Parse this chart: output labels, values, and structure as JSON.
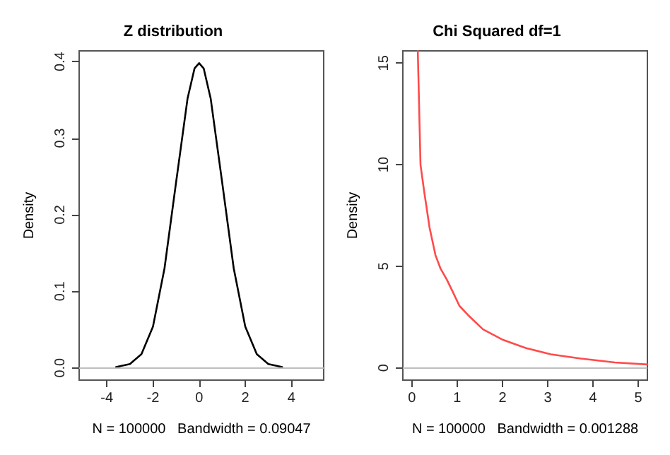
{
  "chart_data": [
    {
      "type": "line",
      "title": "Z distribution",
      "xlabel": "N = 100000   Bandwidth = 0.09047",
      "ylabel": "Density",
      "series": [
        {
          "color": "#000000",
          "x": [
            -3.6,
            -3,
            -2.5,
            -2,
            -1.5,
            -1,
            -0.5,
            -0.2,
            0,
            0.2,
            0.5,
            1,
            1.5,
            2,
            2.5,
            3,
            3.6
          ],
          "values": [
            0.001,
            0.005,
            0.018,
            0.054,
            0.13,
            0.242,
            0.352,
            0.391,
            0.398,
            0.391,
            0.352,
            0.242,
            0.13,
            0.054,
            0.018,
            0.005,
            0.001
          ]
        }
      ],
      "xlim": [
        -5.2,
        5.4
      ],
      "xticks": [
        -4,
        -2,
        0,
        2,
        4
      ],
      "ylim": [
        -0.016,
        0.414
      ],
      "yticks": [
        {
          "value": 0,
          "label": "0.0"
        },
        0.1,
        0.2,
        0.3,
        0.4
      ],
      "ref_lines": [
        {
          "axis": "y",
          "value": 0,
          "color": "#bebebe"
        }
      ],
      "grid": false,
      "marker": "none",
      "line_style": "solid"
    },
    {
      "type": "line",
      "title": "Chi Squared df=1",
      "xlabel": "N = 100000   Bandwidth = 0.001288",
      "ylabel": "Density",
      "series": [
        {
          "color": "#ff4a4a",
          "x": [
            0.13,
            0.19,
            0.27,
            0.39,
            0.52,
            0.63,
            0.77,
            0.89,
            1.05,
            1.24,
            1.57,
            1.99,
            2.51,
            3.07,
            3.73,
            4.48,
            5.2
          ],
          "values": [
            15.6,
            10,
            8.7,
            6.9,
            5.55,
            4.9,
            4.35,
            3.8,
            3.05,
            2.6,
            1.9,
            1.4,
            0.98,
            0.67,
            0.46,
            0.27,
            0.17
          ]
        }
      ],
      "xlim": [
        -0.2,
        5.2
      ],
      "xticks": [
        0,
        1,
        2,
        3,
        4,
        5
      ],
      "ylim": [
        -0.6,
        15.6
      ],
      "yticks": [
        0,
        5,
        10,
        15
      ],
      "ref_lines": [
        {
          "axis": "y",
          "value": 0,
          "color": "#bebebe"
        }
      ],
      "grid": false,
      "marker": "none",
      "line_style": "solid"
    }
  ]
}
